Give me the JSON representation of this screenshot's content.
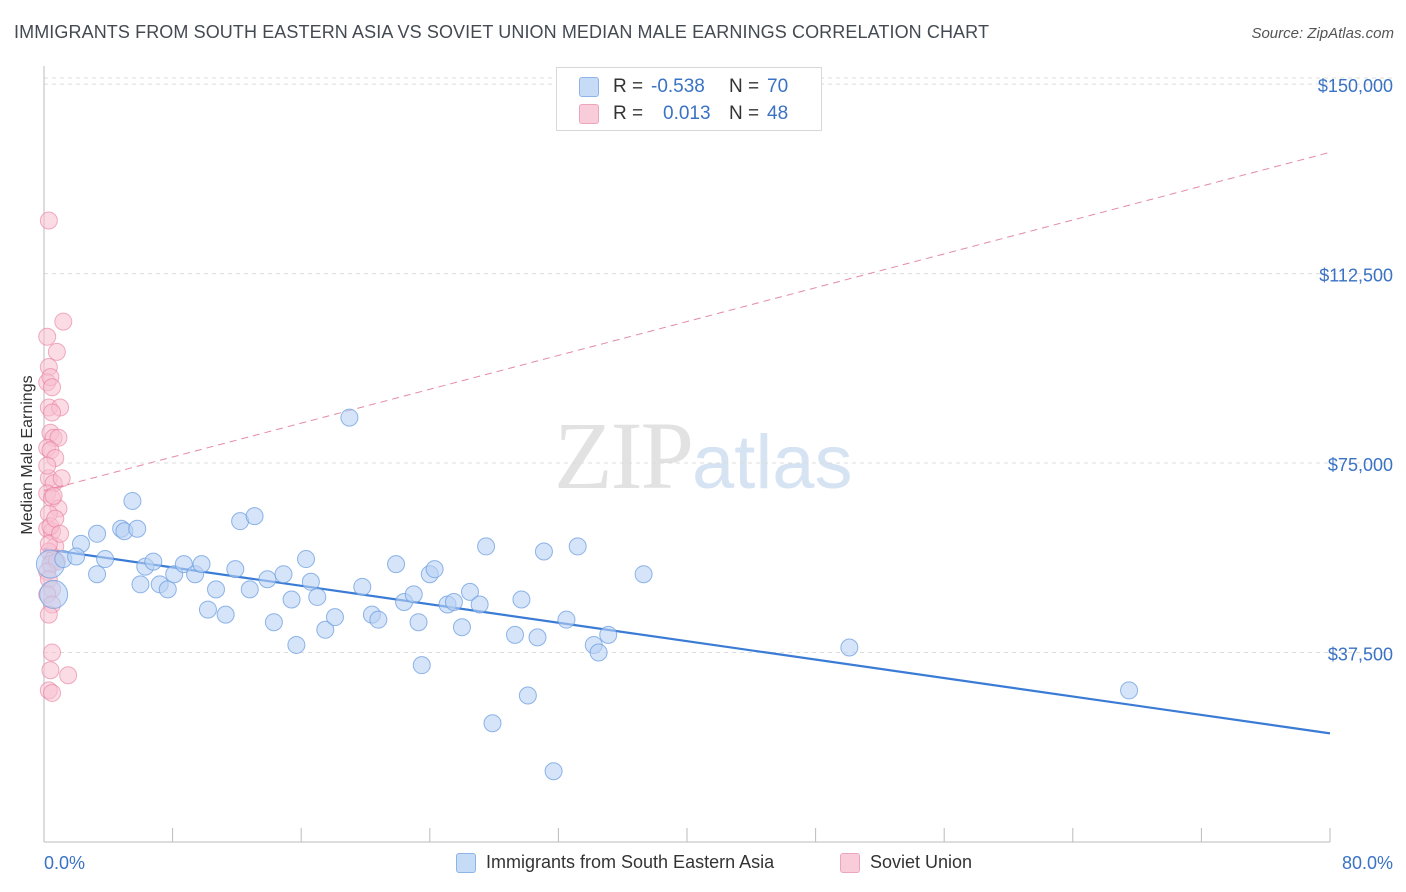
{
  "header": {
    "title": "IMMIGRANTS FROM SOUTH EASTERN ASIA VS SOVIET UNION MEDIAN MALE EARNINGS CORRELATION CHART",
    "source": "Source: ZipAtlas.com"
  },
  "watermark": {
    "zip": "ZIP",
    "atlas": "atlas"
  },
  "legend": {
    "rows": [
      {
        "r_label": "R =",
        "r_value": "-0.538",
        "n_label": "N =",
        "n_value": "70",
        "color": "#9ec2ee"
      },
      {
        "r_label": "R =",
        "r_value": "0.013",
        "n_label": "N =",
        "n_value": "48",
        "color": "#f4a8c0"
      }
    ]
  },
  "bottom_legend": {
    "series1": "Immigrants from South Eastern Asia",
    "series2": "Soviet Union"
  },
  "chart_data": {
    "type": "scatter",
    "ylabel": "Median Male Earnings",
    "xlabel": "",
    "x_tick_labels": [
      "0.0%",
      "80.0%"
    ],
    "y_tick_labels": [
      "$150,000",
      "$112,500",
      "$75,000",
      "$37,500"
    ],
    "y_ticks": [
      150000,
      112500,
      75000,
      37500
    ],
    "xlim": [
      0,
      80
    ],
    "ylim": [
      0,
      152000
    ],
    "grid": "horizontal dashed",
    "colors": {
      "blue": "#3a7bd5",
      "blue_fill": "#b9d2f3",
      "pink": "#e77a9c",
      "pink_fill": "#f7bfd0"
    },
    "series": [
      {
        "name": "Immigrants from South Eastern Asia",
        "trend": {
          "x": [
            0,
            80
          ],
          "y": [
            58000,
            21500
          ],
          "style": "solid"
        },
        "points": [
          [
            0.4,
            55000
          ],
          [
            0.6,
            49000
          ],
          [
            1.2,
            56000
          ],
          [
            2.3,
            59000
          ],
          [
            3.3,
            61000
          ],
          [
            3.3,
            53000
          ],
          [
            3.8,
            56000
          ],
          [
            4.8,
            62000
          ],
          [
            5.0,
            61500
          ],
          [
            5.5,
            67500
          ],
          [
            6.0,
            51000
          ],
          [
            6.3,
            54500
          ],
          [
            6.8,
            55500
          ],
          [
            7.2,
            51000
          ],
          [
            7.7,
            50000
          ],
          [
            8.1,
            53000
          ],
          [
            8.7,
            55000
          ],
          [
            9.4,
            53000
          ],
          [
            9.8,
            55000
          ],
          [
            10.2,
            46000
          ],
          [
            10.7,
            50000
          ],
          [
            11.3,
            45000
          ],
          [
            11.9,
            54000
          ],
          [
            12.2,
            63500
          ],
          [
            12.8,
            50000
          ],
          [
            13.1,
            64500
          ],
          [
            13.9,
            52000
          ],
          [
            14.3,
            43500
          ],
          [
            14.9,
            53000
          ],
          [
            15.4,
            48000
          ],
          [
            15.7,
            39000
          ],
          [
            16.3,
            56000
          ],
          [
            16.6,
            51500
          ],
          [
            17.0,
            48500
          ],
          [
            17.5,
            42000
          ],
          [
            18.1,
            44500
          ],
          [
            19.0,
            84000
          ],
          [
            19.8,
            50500
          ],
          [
            20.4,
            45000
          ],
          [
            20.8,
            44000
          ],
          [
            21.9,
            55000
          ],
          [
            22.4,
            47500
          ],
          [
            23.0,
            49000
          ],
          [
            23.5,
            35000
          ],
          [
            24.0,
            53000
          ],
          [
            24.3,
            54000
          ],
          [
            25.1,
            47000
          ],
          [
            25.5,
            47500
          ],
          [
            26.0,
            42500
          ],
          [
            26.5,
            49500
          ],
          [
            27.1,
            47000
          ],
          [
            27.5,
            58500
          ],
          [
            27.9,
            23500
          ],
          [
            29.3,
            41000
          ],
          [
            29.7,
            48000
          ],
          [
            30.1,
            29000
          ],
          [
            30.7,
            40500
          ],
          [
            31.1,
            57500
          ],
          [
            31.7,
            14000
          ],
          [
            32.5,
            44000
          ],
          [
            33.2,
            58500
          ],
          [
            34.2,
            39000
          ],
          [
            34.5,
            37500
          ],
          [
            35.1,
            41000
          ],
          [
            37.3,
            53000
          ],
          [
            50.1,
            38500
          ],
          [
            67.5,
            30000
          ],
          [
            2.0,
            56500
          ],
          [
            5.8,
            62000
          ],
          [
            23.3,
            43500
          ]
        ]
      },
      {
        "name": "Soviet Union",
        "trend": {
          "x": [
            0,
            80
          ],
          "y": [
            69500,
            136500
          ],
          "style": "dashed"
        },
        "points": [
          [
            0.3,
            123000
          ],
          [
            1.2,
            103000
          ],
          [
            0.2,
            100000
          ],
          [
            0.8,
            97000
          ],
          [
            0.3,
            94000
          ],
          [
            0.2,
            91000
          ],
          [
            0.4,
            92000
          ],
          [
            0.5,
            90000
          ],
          [
            0.3,
            86000
          ],
          [
            1.0,
            86000
          ],
          [
            0.5,
            85000
          ],
          [
            0.4,
            81000
          ],
          [
            0.6,
            80000
          ],
          [
            0.9,
            80000
          ],
          [
            0.2,
            78000
          ],
          [
            0.4,
            77500
          ],
          [
            0.7,
            76000
          ],
          [
            0.3,
            72000
          ],
          [
            0.6,
            71000
          ],
          [
            1.1,
            72000
          ],
          [
            0.2,
            69000
          ],
          [
            0.5,
            68000
          ],
          [
            0.9,
            66000
          ],
          [
            0.3,
            65000
          ],
          [
            0.2,
            62000
          ],
          [
            0.5,
            61500
          ],
          [
            0.7,
            58500
          ],
          [
            0.3,
            57500
          ],
          [
            0.6,
            56000
          ],
          [
            0.4,
            55000
          ],
          [
            0.8,
            55500
          ],
          [
            0.2,
            53500
          ],
          [
            0.3,
            52000
          ],
          [
            0.5,
            50000
          ],
          [
            0.2,
            49000
          ],
          [
            0.5,
            47000
          ],
          [
            0.3,
            45000
          ],
          [
            0.5,
            37500
          ],
          [
            0.4,
            34000
          ],
          [
            0.3,
            30000
          ],
          [
            0.5,
            29500
          ],
          [
            1.5,
            33000
          ],
          [
            0.4,
            62500
          ],
          [
            0.7,
            64000
          ],
          [
            0.3,
            59000
          ],
          [
            1.0,
            61000
          ],
          [
            0.6,
            68500
          ],
          [
            0.2,
            74500
          ]
        ]
      }
    ]
  }
}
